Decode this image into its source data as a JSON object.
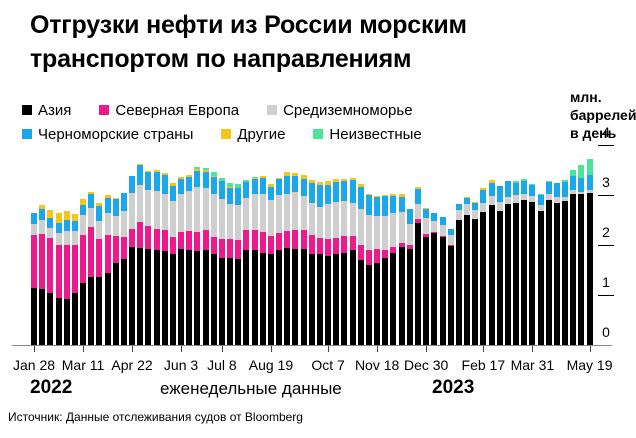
{
  "title": "Отгрузки нефти из России морским транспортом по направлениям",
  "legend": [
    {
      "key": "asia",
      "label": "Азия",
      "color": "#000000"
    },
    {
      "key": "north_europe",
      "label": "Северная Европа",
      "color": "#ec1a8d"
    },
    {
      "key": "mediterranean",
      "label": "Средиземноморье",
      "color": "#cfcfcf"
    },
    {
      "key": "black_sea",
      "label": "Черноморские страны",
      "color": "#1aa7ec"
    },
    {
      "key": "other",
      "label": "Другие",
      "color": "#f5c518"
    },
    {
      "key": "unknown",
      "label": "Неизвестные",
      "color": "#4ee29a"
    }
  ],
  "unit_label": [
    "млн.",
    "баррелей",
    "в день"
  ],
  "year_labels": {
    "start": "2022",
    "end": "2023"
  },
  "x_caption": "еженедельные данные",
  "source": "Источник: Данные отслеживания судов от Bloomberg",
  "chart_data": {
    "type": "bar",
    "stacked": true,
    "title": "Отгрузки нефти из России морским транспортом по направлениям",
    "xlabel": "еженедельные данные",
    "ylabel": "млн. баррелей в день",
    "ylim": [
      0,
      4
    ],
    "yticks": [
      0,
      1,
      2,
      3,
      4
    ],
    "xtick_labels": [
      "Jan 28",
      "Mar 11",
      "Apr 22",
      "Jun 3",
      "Jul 8",
      "Aug 19",
      "Oct 7",
      "Nov 18",
      "Dec 30",
      "Feb 17",
      "Mar 31",
      "May 19"
    ],
    "xtick_index": [
      0,
      6,
      12,
      18,
      23,
      29,
      36,
      42,
      48,
      55,
      61,
      68
    ],
    "grid": false,
    "legend_position": "top",
    "n_weeks": 69,
    "series": [
      {
        "name": "Азия",
        "color": "#000000",
        "values": [
          1.15,
          1.13,
          1.05,
          0.95,
          0.93,
          1.05,
          1.25,
          1.37,
          1.37,
          1.45,
          1.65,
          1.72,
          1.97,
          1.95,
          1.93,
          1.9,
          1.88,
          1.82,
          1.92,
          1.9,
          1.88,
          1.9,
          1.82,
          1.75,
          1.75,
          1.72,
          1.9,
          1.9,
          1.85,
          1.83,
          1.9,
          1.95,
          1.93,
          1.93,
          1.82,
          1.82,
          1.78,
          1.82,
          1.85,
          1.9,
          1.7,
          1.6,
          1.65,
          1.75,
          1.85,
          1.97,
          1.92,
          2.45,
          2.17,
          2.25,
          2.17,
          1.98,
          2.5,
          2.6,
          2.52,
          2.67,
          2.8,
          2.68,
          2.82,
          2.85,
          2.9,
          2.87,
          2.68,
          2.9,
          2.85,
          2.88,
          3.02,
          3.02,
          3.05
        ]
      },
      {
        "name": "Северная Европа",
        "color": "#ec1a8d",
        "values": [
          1.05,
          1.1,
          1.1,
          1.05,
          1.07,
          0.95,
          0.95,
          1.0,
          0.75,
          0.75,
          0.53,
          0.45,
          0.35,
          0.52,
          0.45,
          0.42,
          0.42,
          0.35,
          0.35,
          0.38,
          0.38,
          0.4,
          0.35,
          0.38,
          0.38,
          0.38,
          0.4,
          0.4,
          0.42,
          0.35,
          0.35,
          0.33,
          0.38,
          0.38,
          0.38,
          0.33,
          0.35,
          0.33,
          0.33,
          0.28,
          0.3,
          0.3,
          0.28,
          0.15,
          0.12,
          0.08,
          0.08,
          0.08,
          0.05,
          0.02,
          0.02,
          0.02,
          0.0,
          0.0,
          0.0,
          0.0,
          0.0,
          0.0,
          0.0,
          0.0,
          0.0,
          0.0,
          0.0,
          0.0,
          0.0,
          0.0,
          0.0,
          0.0,
          0.0
        ]
      },
      {
        "name": "Средиземноморье",
        "color": "#cfcfcf",
        "values": [
          0.22,
          0.28,
          0.2,
          0.25,
          0.28,
          0.28,
          0.4,
          0.37,
          0.37,
          0.45,
          0.4,
          0.52,
          0.72,
          0.73,
          0.72,
          0.77,
          0.73,
          0.72,
          0.75,
          0.8,
          0.9,
          0.85,
          0.85,
          0.8,
          0.7,
          0.7,
          0.65,
          0.72,
          0.75,
          0.72,
          0.75,
          0.75,
          0.75,
          0.68,
          0.65,
          0.62,
          0.7,
          0.72,
          0.7,
          0.67,
          0.72,
          0.7,
          0.65,
          0.68,
          0.68,
          0.62,
          0.42,
          0.3,
          0.32,
          0.22,
          0.22,
          0.2,
          0.2,
          0.22,
          0.18,
          0.18,
          0.18,
          0.18,
          0.15,
          0.15,
          0.12,
          0.12,
          0.12,
          0.12,
          0.12,
          0.08,
          0.08,
          0.05,
          0.05
        ]
      },
      {
        "name": "Черноморские страны",
        "color": "#1aa7ec",
        "values": [
          0.22,
          0.22,
          0.2,
          0.2,
          0.22,
          0.2,
          0.2,
          0.28,
          0.3,
          0.3,
          0.35,
          0.35,
          0.35,
          0.4,
          0.37,
          0.37,
          0.37,
          0.3,
          0.3,
          0.28,
          0.33,
          0.32,
          0.35,
          0.35,
          0.32,
          0.35,
          0.32,
          0.3,
          0.32,
          0.27,
          0.33,
          0.35,
          0.33,
          0.33,
          0.4,
          0.43,
          0.37,
          0.4,
          0.4,
          0.45,
          0.45,
          0.4,
          0.38,
          0.4,
          0.33,
          0.3,
          0.3,
          0.3,
          0.18,
          0.15,
          0.15,
          0.12,
          0.12,
          0.12,
          0.15,
          0.25,
          0.27,
          0.32,
          0.32,
          0.25,
          0.27,
          0.22,
          0.2,
          0.25,
          0.27,
          0.3,
          0.28,
          0.28,
          0.3
        ]
      },
      {
        "name": "Другие",
        "color": "#f5c518",
        "values": [
          0.0,
          0.07,
          0.15,
          0.2,
          0.18,
          0.15,
          0.12,
          0.05,
          0.05,
          0.05,
          0.02,
          0.0,
          0.0,
          0.02,
          0.02,
          0.05,
          0.05,
          0.05,
          0.05,
          0.05,
          0.03,
          0.03,
          0.02,
          0.0,
          0.02,
          0.0,
          0.0,
          0.02,
          0.05,
          0.05,
          0.02,
          0.08,
          0.05,
          0.08,
          0.05,
          0.07,
          0.08,
          0.05,
          0.05,
          0.05,
          0.05,
          0.02,
          0.02,
          0.03,
          0.05,
          0.05,
          0.0,
          0.03,
          0.03,
          0.0,
          0.0,
          0.0,
          0.0,
          0.02,
          0.02,
          0.05,
          0.05,
          0.0,
          0.0,
          0.0,
          0.0,
          0.0,
          0.0,
          0.0,
          0.0,
          0.0,
          0.0,
          0.0,
          0.0
        ]
      },
      {
        "name": "Неизвестные",
        "color": "#4ee29a",
        "values": [
          0.0,
          0.0,
          0.0,
          0.0,
          0.0,
          0.0,
          0.0,
          0.0,
          0.0,
          0.0,
          0.0,
          0.0,
          0.0,
          0.0,
          0.0,
          0.0,
          0.0,
          0.0,
          0.0,
          0.0,
          0.05,
          0.05,
          0.07,
          0.07,
          0.07,
          0.07,
          0.03,
          0.02,
          0.0,
          0.0,
          0.0,
          0.0,
          0.0,
          0.0,
          0.0,
          0.0,
          0.0,
          0.0,
          0.0,
          0.0,
          0.0,
          0.0,
          0.0,
          0.0,
          0.0,
          0.0,
          0.0,
          0.0,
          0.0,
          0.0,
          0.0,
          0.0,
          0.0,
          0.0,
          0.0,
          0.0,
          0.0,
          0.0,
          0.0,
          0.03,
          0.03,
          0.02,
          0.03,
          0.02,
          0.0,
          0.05,
          0.12,
          0.25,
          0.32
        ]
      }
    ]
  }
}
